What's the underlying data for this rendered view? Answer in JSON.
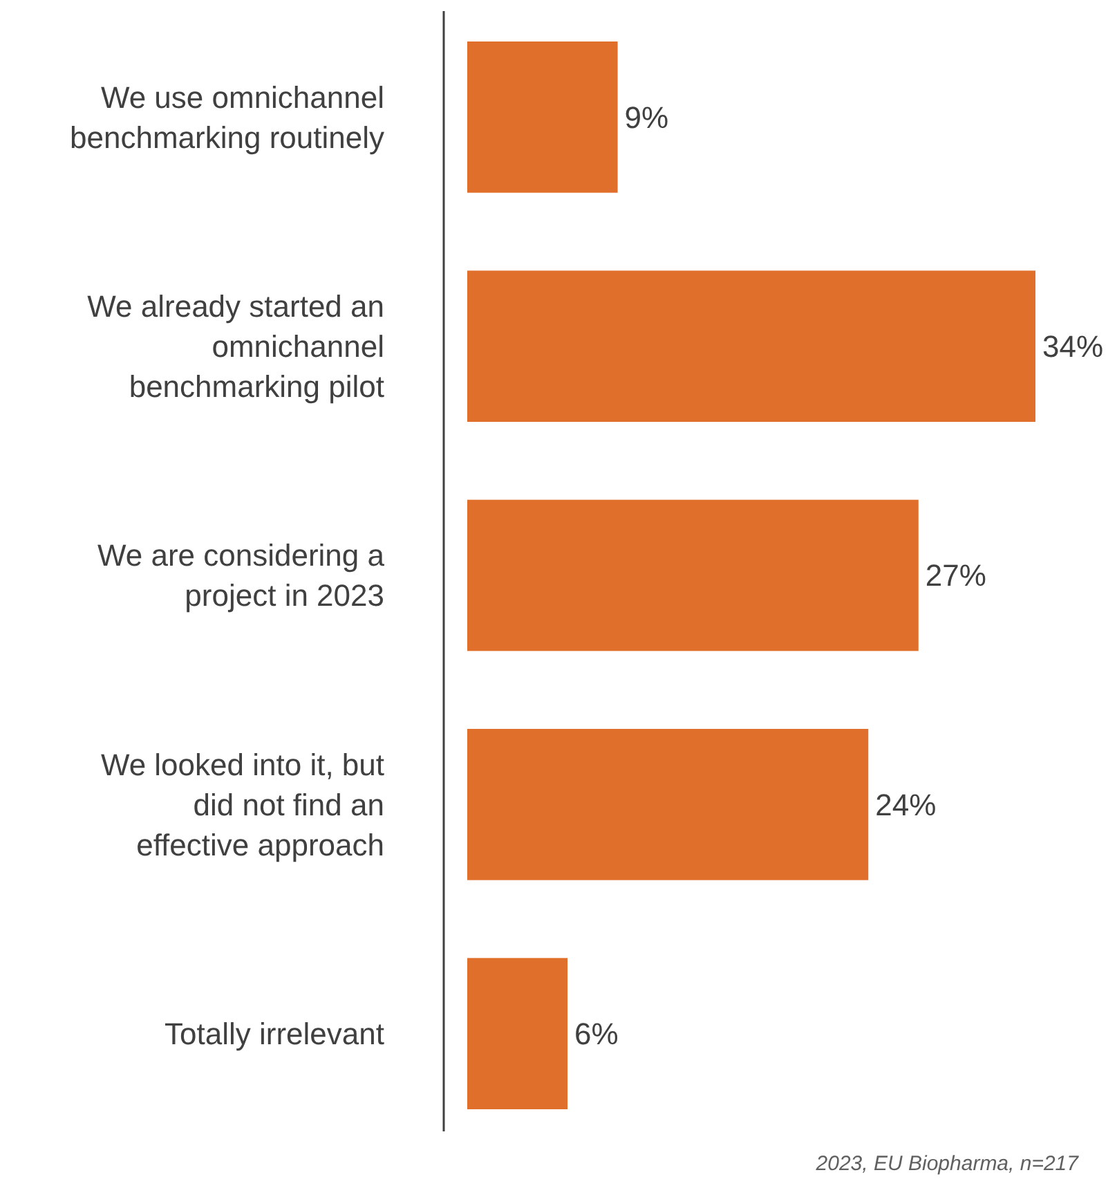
{
  "chart_data": {
    "type": "bar",
    "orientation": "horizontal",
    "categories": [
      "We use omnichannel benchmarking routinely",
      "We already started an omnichannel benchmarking pilot",
      "We are considering a project in 2023",
      "We looked into it, but did not find an effective approach",
      "Totally irrelevant"
    ],
    "values": [
      9,
      34,
      27,
      24,
      6
    ],
    "value_labels": [
      "9%",
      "34%",
      "27%",
      "24%",
      "6%"
    ],
    "color": "#e06f2c",
    "tick_labels": "y",
    "annotations": [
      "2023, EU Biopharma, n=217"
    ]
  }
}
